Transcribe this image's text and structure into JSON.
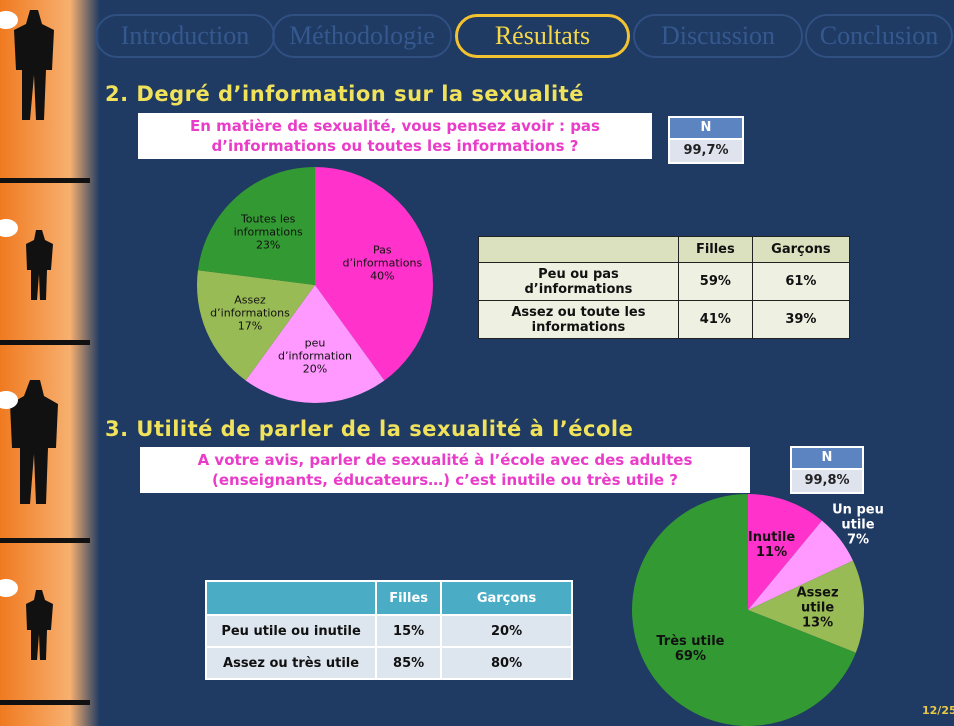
{
  "nav": {
    "tabs": [
      "Introduction",
      "Méthodologie",
      "Résultats",
      "Discussion",
      "Conclusion"
    ],
    "active": 2
  },
  "sections": [
    {
      "title": "2. Degré d’information sur la sexualité",
      "question": "En matière de sexualité, vous pensez avoir : pas d’informations ou toutes les informations ?",
      "n_header": "N",
      "n_value": "99,7%",
      "table": {
        "header": [
          "Filles",
          "Garçons"
        ],
        "rows": [
          [
            "Peu ou pas d’informations",
            "59%",
            "61%"
          ],
          [
            "Assez ou toute les informations",
            "41%",
            "39%"
          ]
        ]
      }
    },
    {
      "title": "3. Utilité de parler de la sexualité à l’école",
      "question": "A votre avis, parler de sexualité à l’école avec des adultes (enseignants, éducateurs…) c’est inutile ou très utile ?",
      "n_header": "N",
      "n_value": "99,8%",
      "table": {
        "header": [
          "Filles",
          "Garçons"
        ],
        "rows": [
          [
            "Peu utile ou inutile",
            "15%",
            "20%"
          ],
          [
            "Assez ou très utile",
            "85%",
            "80%"
          ]
        ]
      }
    }
  ],
  "chart_data": [
    {
      "type": "pie",
      "categories": [
        "Pas d’informations",
        "peu d’information",
        "Assez d’informations",
        "Toutes les informations"
      ],
      "values": [
        40,
        20,
        17,
        23
      ],
      "value_labels": [
        "40%",
        "20%",
        "17%",
        "23%"
      ],
      "colors": [
        "#ff33cc",
        "#ff99ff",
        "#99bb55",
        "#339933"
      ]
    },
    {
      "type": "pie",
      "categories": [
        "Inutile",
        "Un peu utile",
        "Assez utile",
        "Très utile"
      ],
      "values": [
        11,
        7,
        13,
        69
      ],
      "value_labels": [
        "11%",
        "7%",
        "13%",
        "69%"
      ],
      "colors": [
        "#ff33cc",
        "#ff99ff",
        "#99bb55",
        "#339933"
      ]
    }
  ],
  "page_number": "12/25"
}
